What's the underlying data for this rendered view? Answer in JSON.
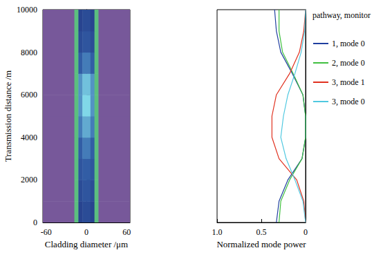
{
  "chart_data": [
    {
      "type": "heatmap",
      "xlabel": "Cladding diameter /μm",
      "ylabel": "Transmission distance /m",
      "xlim": [
        -65,
        65
      ],
      "xticks": [
        -60,
        0,
        60
      ],
      "ylim": [
        0,
        10000
      ],
      "yticks": [
        0,
        2000,
        4000,
        6000,
        8000,
        10000
      ],
      "x_edges": [
        -65,
        -18,
        -12,
        -6,
        0,
        6,
        12,
        18,
        65
      ],
      "y_edges": [
        0,
        1000,
        2000,
        3000,
        4000,
        5000,
        6000,
        7000,
        8000,
        9000,
        10000
      ],
      "zlim": [
        0,
        1
      ],
      "cells": [
        [
          0.05,
          1,
          0.3,
          0.35,
          0.35,
          0.3,
          1,
          0.05
        ],
        [
          0.05,
          1,
          0.35,
          0.4,
          0.4,
          0.35,
          1,
          0.05
        ],
        [
          0.05,
          1,
          0.4,
          0.45,
          0.45,
          0.4,
          1,
          0.05
        ],
        [
          0.05,
          1,
          0.45,
          0.55,
          0.55,
          0.45,
          1,
          0.05
        ],
        [
          0.05,
          1,
          0.55,
          0.65,
          0.65,
          0.55,
          1,
          0.05
        ],
        [
          0.05,
          1,
          0.6,
          0.75,
          0.75,
          0.6,
          1,
          0.05
        ],
        [
          0.05,
          1,
          0.6,
          0.7,
          0.7,
          0.6,
          1,
          0.05
        ],
        [
          0.05,
          1,
          0.45,
          0.55,
          0.55,
          0.45,
          1,
          0.05
        ],
        [
          0.05,
          1,
          0.35,
          0.4,
          0.4,
          0.35,
          1,
          0.05
        ],
        [
          0.05,
          1,
          0.3,
          0.35,
          0.35,
          0.3,
          1,
          0.05
        ]
      ]
    },
    {
      "type": "line",
      "xlabel": "Normalized mode power",
      "xlim": [
        0,
        1
      ],
      "xticks": [
        {
          "value": 1,
          "label": "1.0"
        },
        0.5,
        0
      ],
      "ylim": [
        0,
        10000
      ],
      "tick_labels": "x",
      "legend": "right",
      "legend_title": "pathway, monitor",
      "y": [
        0,
        1000,
        2000,
        3000,
        4000,
        5000,
        6000,
        7000,
        8000,
        9000,
        10000
      ],
      "series": [
        {
          "name": "1, mode 0",
          "color": "#1f3f9f",
          "values": [
            0.33,
            0.3,
            0.2,
            0.04,
            0.0,
            0.0,
            0.03,
            0.15,
            0.28,
            0.33,
            0.35
          ]
        },
        {
          "name": "2, mode 0",
          "color": "#3fbf3f",
          "values": [
            0.3,
            0.28,
            0.18,
            0.04,
            0.0,
            0.0,
            0.03,
            0.14,
            0.26,
            0.3,
            0.3
          ]
        },
        {
          "name": "3, mode 1",
          "color": "#e0301e",
          "values": [
            0.0,
            0.02,
            0.1,
            0.3,
            0.38,
            0.38,
            0.33,
            0.18,
            0.07,
            0.02,
            0.0
          ]
        },
        {
          "name": "3, mode 0",
          "color": "#4fc8e0",
          "values": [
            0.0,
            0.03,
            0.12,
            0.22,
            0.28,
            0.25,
            0.2,
            0.12,
            0.05,
            0.01,
            0.0
          ]
        }
      ]
    }
  ]
}
